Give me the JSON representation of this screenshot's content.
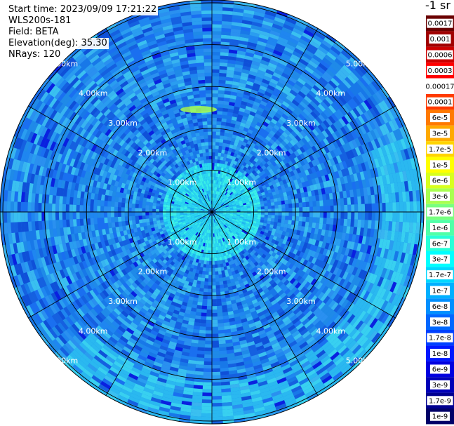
{
  "header": {
    "start_time": "Start time: 2023/09/09 17:21:22",
    "instrument": "WLS200s-181",
    "field": "Field: BETA",
    "elevation": "Elevation(deg): 35.30",
    "nrays": "NRays: 120"
  },
  "colorbar": {
    "units_label": "-1 sr",
    "ticks": [
      "0.0017",
      "0.001",
      "0.0006",
      "0.0003",
      "0.00017",
      "0.0001",
      "6e-5",
      "3e-5",
      "1.7e-5",
      "1e-5",
      "6e-6",
      "3e-6",
      "1.7e-6",
      "1e-6",
      "6e-7",
      "3e-7",
      "1.7e-7",
      "1e-7",
      "6e-8",
      "3e-8",
      "1.7e-8",
      "1e-8",
      "6e-9",
      "3e-9",
      "1.7e-9",
      "1e-9"
    ]
  },
  "chart_data": {
    "type": "heatmap",
    "projection": "polar PPI",
    "field": "BETA",
    "n_rays": 120,
    "range_rings_km": [
      1,
      2,
      3,
      4,
      5
    ],
    "ring_labels": [
      "1.00km",
      "2.00km",
      "3.00km",
      "4.00km",
      "5.00km"
    ],
    "max_range_km": 5.0,
    "color_scale": "log",
    "value_range": [
      1e-09,
      0.0017
    ],
    "dominant_value_range": [
      1e-08,
      1.7e-07
    ],
    "colors": [
      "#6a0000",
      "#a00000",
      "#cc0000",
      "#ff0000",
      "#ffffff",
      "#ff3a00",
      "#ff7a00",
      "#ffaa00",
      "#ffd400",
      "#ffff00",
      "#d8ff1e",
      "#a8ff50",
      "#78ff80",
      "#50ffa8",
      "#28ffd8",
      "#00ffff",
      "#00d8ff",
      "#00b0ff",
      "#0090ff",
      "#0068ff",
      "#0040ff",
      "#0018ff",
      "#0000e0",
      "#0000b8",
      "#000090",
      "#000068"
    ]
  }
}
